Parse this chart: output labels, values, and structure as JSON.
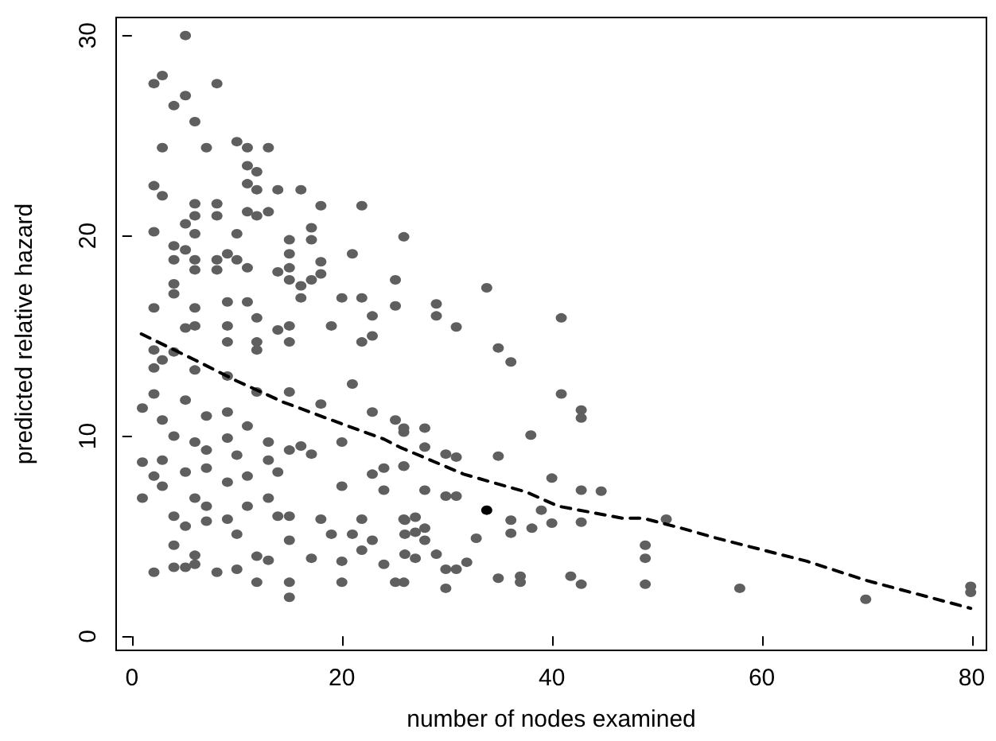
{
  "chart_data": {
    "type": "scatter",
    "xlabel": "number of nodes examined",
    "ylabel": "predicted relative hazard",
    "xlim": [
      -1.5,
      81.4
    ],
    "ylim": [
      -0.7,
      30.9
    ],
    "xticks": [
      0,
      20,
      40,
      60,
      80
    ],
    "yticks": [
      0,
      10,
      20,
      30
    ],
    "grid": false,
    "marker": "circle",
    "series": [
      {
        "color": "#5f5f5f",
        "x": [
          5.1,
          2.9,
          2.1,
          8.1,
          5.1,
          4.0,
          6.0,
          2.9,
          7.1,
          10.0,
          11.0,
          13.0,
          11.0,
          11.9,
          2.1,
          2.9,
          11.0,
          11.9,
          13.9,
          16.1,
          6.0,
          8.1,
          6.0,
          8.1,
          5.1,
          11.0,
          11.9,
          13.0,
          18.0,
          21.9,
          2.1,
          6.0,
          10.0,
          17.1,
          25.9,
          4.0,
          4.0,
          5.1,
          6.0,
          6.0,
          8.1,
          8.1,
          9.1,
          10.0,
          11.0,
          15.0,
          17.1,
          15.0,
          15.0,
          13.9,
          15.0,
          16.1,
          17.1,
          18.0,
          18.0,
          21.0,
          4.0,
          4.0,
          2.1,
          6.0,
          9.1,
          11.0,
          16.1,
          20.0,
          21.9,
          25.1,
          25.1,
          22.9,
          11.9,
          6.0,
          9.1,
          15.0,
          19.0,
          13.9,
          9.1,
          11.9,
          15.0,
          22.9,
          21.9,
          33.8,
          29.0,
          29.0,
          30.9,
          40.9,
          34.9,
          36.1,
          40.9,
          42.8,
          42.8,
          38.0,
          25.9,
          27.9,
          27.9,
          25.9,
          29.9,
          30.9,
          34.9,
          40.0,
          42.8,
          44.7,
          27.9,
          29.9,
          30.9,
          26.0,
          27.0,
          27.9,
          27.0,
          26.0,
          27.9,
          26.0,
          29.0,
          27.0,
          32.8,
          36.1,
          36.1,
          38.1,
          39.0,
          40.0,
          42.8,
          50.9,
          48.9,
          48.9,
          48.9,
          29.9,
          30.9,
          31.9,
          29.9,
          34.9,
          37.0,
          37.0,
          41.8,
          42.8,
          25.9,
          57.9,
          69.9,
          79.9,
          79.9,
          1.0,
          2.1,
          2.1,
          2.9,
          2.1,
          4.0,
          2.9,
          4.0,
          1.0,
          2.9,
          2.1,
          2.9,
          1.0,
          4.0,
          4.0,
          2.1,
          4.0,
          5.1,
          6.0,
          6.0,
          5.1,
          6.0,
          5.1,
          6.0,
          5.1,
          6.0,
          5.1,
          7.1,
          7.1,
          7.1,
          7.1,
          7.1,
          8.1,
          9.1,
          9.1,
          9.1,
          9.1,
          9.1,
          10.0,
          10.0,
          10.0,
          11.0,
          11.0,
          11.0,
          11.9,
          11.9,
          11.9,
          11.9,
          13.0,
          13.0,
          13.0,
          13.0,
          13.9,
          13.9,
          15.0,
          15.0,
          15.0,
          15.0,
          15.0,
          15.0,
          16.1,
          17.1,
          17.1,
          18.0,
          18.0,
          19.0,
          20.0,
          20.0,
          20.0,
          20.0,
          21.0,
          21.0,
          21.9,
          21.9,
          22.9,
          22.9,
          24.0,
          24.0,
          24.0,
          25.1,
          25.9,
          25.9,
          25.9,
          22.9,
          25.1
        ],
        "values": [
          30.0,
          28.0,
          27.6,
          27.6,
          27.0,
          26.5,
          25.7,
          24.4,
          24.4,
          24.7,
          24.4,
          24.4,
          23.5,
          23.2,
          22.5,
          22.0,
          22.6,
          22.3,
          22.3,
          22.3,
          21.6,
          21.6,
          21.0,
          21.0,
          20.6,
          21.2,
          21.0,
          21.2,
          21.5,
          21.5,
          20.2,
          20.1,
          20.1,
          20.4,
          19.95,
          19.5,
          18.8,
          19.3,
          18.8,
          18.3,
          18.8,
          18.3,
          19.1,
          18.8,
          18.4,
          19.8,
          19.8,
          19.1,
          18.4,
          18.2,
          17.8,
          17.5,
          17.8,
          18.7,
          18.1,
          19.1,
          17.6,
          17.1,
          16.4,
          16.4,
          16.7,
          16.7,
          16.9,
          16.9,
          16.9,
          17.8,
          16.5,
          16.0,
          15.9,
          15.5,
          15.5,
          15.5,
          15.5,
          15.3,
          14.7,
          14.7,
          14.7,
          15.0,
          14.7,
          17.4,
          16.6,
          16.0,
          15.45,
          15.9,
          14.4,
          13.7,
          12.1,
          11.3,
          10.9,
          10.05,
          10.2,
          10.4,
          9.45,
          8.5,
          9.1,
          8.95,
          9.0,
          7.9,
          7.3,
          7.25,
          7.3,
          7.0,
          7.0,
          5.8,
          5.95,
          5.4,
          5.2,
          5.1,
          4.8,
          4.1,
          4.1,
          3.9,
          4.9,
          5.8,
          5.15,
          5.4,
          6.3,
          5.65,
          5.7,
          5.85,
          4.55,
          3.9,
          2.6,
          3.35,
          3.35,
          3.7,
          2.4,
          2.9,
          3.0,
          2.7,
          3.0,
          2.6,
          2.7,
          2.4,
          1.85,
          2.2,
          2.5,
          11.4,
          12.1,
          13.4,
          13.8,
          14.3,
          14.2,
          10.8,
          10.0,
          8.7,
          8.8,
          8.0,
          7.5,
          6.9,
          6.0,
          4.55,
          3.2,
          3.45,
          3.45,
          3.6,
          4.05,
          5.5,
          6.9,
          8.2,
          9.7,
          11.8,
          13.3,
          15.4,
          11.0,
          9.3,
          8.4,
          6.5,
          5.75,
          3.2,
          13.0,
          11.2,
          9.9,
          7.7,
          5.85,
          3.35,
          5.1,
          9.05,
          6.5,
          8.0,
          10.5,
          14.3,
          12.2,
          4.0,
          2.7,
          3.8,
          6.9,
          8.8,
          9.7,
          8.2,
          6.0,
          4.8,
          1.95,
          2.7,
          6.0,
          9.3,
          12.2,
          9.5,
          3.9,
          9.1,
          5.85,
          11.6,
          5.1,
          7.5,
          3.75,
          2.7,
          9.7,
          12.6,
          5.1,
          4.3,
          5.85,
          11.2,
          8.1,
          7.3,
          8.4,
          3.6,
          2.7,
          5.85,
          10.4,
          8.5,
          4.8,
          10.8
        ]
      },
      {
        "type": "scatter",
        "color": "#000000",
        "x": [
          33.8
        ],
        "values": [
          6.3
        ]
      },
      {
        "type": "line",
        "color": "#000000",
        "line_style": "dashed",
        "marker": "none",
        "x": [
          0.9,
          6.0,
          10.0,
          14.4,
          18.5,
          24.0,
          25.5,
          31.6,
          37.6,
          40.6,
          46.7,
          48.7,
          52.7,
          55.7,
          64.3,
          69.9,
          79.9
        ],
        "values": [
          15.1,
          13.8,
          12.75,
          11.7,
          10.9,
          9.85,
          9.45,
          8.1,
          7.2,
          6.5,
          5.9,
          5.9,
          5.35,
          4.9,
          3.75,
          2.8,
          1.4
        ]
      }
    ]
  }
}
